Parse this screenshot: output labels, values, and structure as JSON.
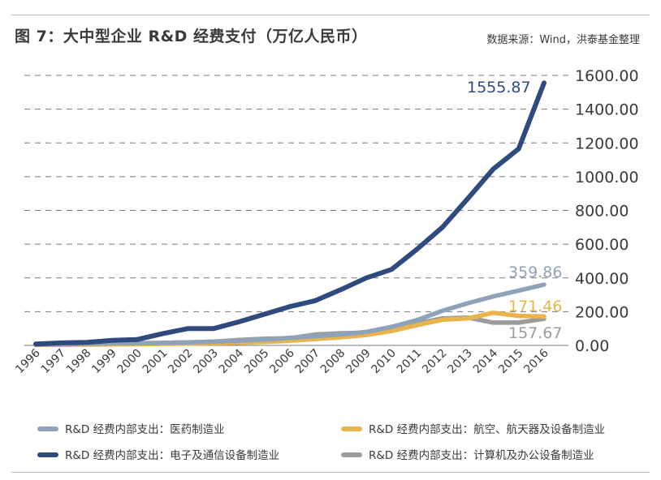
{
  "header": {
    "title": "图 7：大中型企业 R&D 经费支付（万亿人民币）",
    "source": "数据来源：Wind，洪泰基金整理"
  },
  "chart_data": {
    "type": "line",
    "title": "图 7：大中型企业 R&D 经费支付（万亿人民币）",
    "x": [
      "1996",
      "1997",
      "1998",
      "1999",
      "2000",
      "2001",
      "2002",
      "2003",
      "2004",
      "2005",
      "2006",
      "2007",
      "2008",
      "2009",
      "2010",
      "2011",
      "2012",
      "2013",
      "2014",
      "2015",
      "2016"
    ],
    "ylim": [
      0,
      1600
    ],
    "y_ticks": [
      "0.00",
      "200.00",
      "400.00",
      "600.00",
      "800.00",
      "1000.00",
      "1200.00",
      "1400.00",
      "1600.00"
    ],
    "y_tick_values": [
      0,
      200,
      400,
      600,
      800,
      1000,
      1200,
      1400,
      1600
    ],
    "y_axis_position": "right",
    "grid": "horizontal dashed",
    "legend_position": "bottom",
    "series": [
      {
        "name": "R&D 经费内部支出：医药制造业",
        "color": "#8ea3ba",
        "values": [
          5,
          8,
          10,
          12,
          13,
          15,
          18,
          22,
          28,
          35,
          45,
          55,
          65,
          80,
          110,
          150,
          205,
          250,
          290,
          325,
          359.86
        ],
        "end_label": "359.86"
      },
      {
        "name": "R&D 经费内部支出：航空、航天器及设备制造业",
        "color": "#e9b54a",
        "values": [
          3,
          4,
          5,
          6,
          7,
          9,
          11,
          13,
          16,
          20,
          28,
          38,
          48,
          62,
          85,
          120,
          152,
          160,
          193,
          175,
          171.46
        ],
        "end_label": "171.46"
      },
      {
        "name": "R&D 经费内部支出：电子及通信设备制造业",
        "color": "#2f4a7f",
        "values": [
          8,
          15,
          18,
          30,
          35,
          70,
          100,
          100,
          140,
          185,
          230,
          265,
          330,
          400,
          450,
          570,
          700,
          870,
          1045,
          1165,
          1555.87
        ],
        "end_label": "1555.87"
      },
      {
        "name": "R&D 经费内部支出：计算机及办公设备制造业",
        "color": "#9c9c9c",
        "values": [
          5,
          8,
          10,
          12,
          12,
          15,
          18,
          22,
          32,
          40,
          42,
          65,
          72,
          75,
          95,
          130,
          160,
          165,
          135,
          135,
          157.67
        ],
        "end_label": "157.67"
      }
    ]
  },
  "legend": {
    "items": [
      {
        "label": "R&D 经费内部支出：医药制造业",
        "color": "#8ea3ba"
      },
      {
        "label": "R&D 经费内部支出：航空、航天器及设备制造业",
        "color": "#e9b54a"
      },
      {
        "label": "R&D 经费内部支出：电子及通信设备制造业",
        "color": "#2f4a7f"
      },
      {
        "label": "R&D 经费内部支出：计算机及办公设备制造业",
        "color": "#9c9c9c"
      }
    ]
  }
}
